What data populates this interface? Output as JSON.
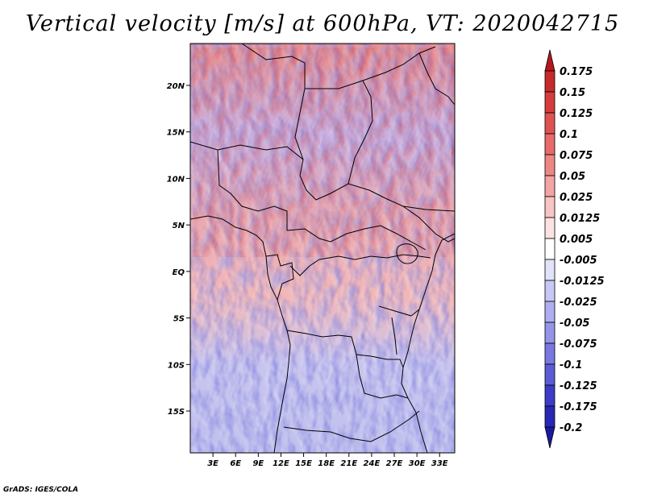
{
  "title": "Vertical velocity [m/s] at 600hPa, VT: 2020042715",
  "credit": "GrADS: IGES/COLA",
  "map": {
    "lat_range": [
      -19.5,
      24.5
    ],
    "lon_range": [
      0,
      35
    ],
    "lat_labels": [
      {
        "value": 20,
        "label": "20N"
      },
      {
        "value": 15,
        "label": "15N"
      },
      {
        "value": 10,
        "label": "10N"
      },
      {
        "value": 5,
        "label": "5N"
      },
      {
        "value": 0,
        "label": "EQ"
      },
      {
        "value": -5,
        "label": "5S"
      },
      {
        "value": -10,
        "label": "10S"
      },
      {
        "value": -15,
        "label": "15S"
      }
    ],
    "lon_labels": [
      {
        "value": 3,
        "label": "3E"
      },
      {
        "value": 6,
        "label": "6E"
      },
      {
        "value": 9,
        "label": "9E"
      },
      {
        "value": 12,
        "label": "12E"
      },
      {
        "value": 15,
        "label": "15E"
      },
      {
        "value": 18,
        "label": "18E"
      },
      {
        "value": 21,
        "label": "21E"
      },
      {
        "value": 24,
        "label": "24E"
      },
      {
        "value": 27,
        "label": "27E"
      },
      {
        "value": 30,
        "label": "30E"
      },
      {
        "value": 33,
        "label": "33E"
      }
    ]
  },
  "colorbar": {
    "levels": [
      "0.175",
      "0.15",
      "0.125",
      "0.1",
      "0.075",
      "0.05",
      "0.025",
      "0.0125",
      "0.005",
      "-0.005",
      "-0.0125",
      "-0.025",
      "-0.05",
      "-0.075",
      "-0.1",
      "-0.125",
      "-0.175",
      "-0.2"
    ],
    "colors": [
      "#b8161e",
      "#c72a2a",
      "#d63c3c",
      "#e05252",
      "#e86a6a",
      "#ee8686",
      "#f4a4a4",
      "#f8c4c4",
      "#fce2e2",
      "#ffffff",
      "#e2e2fa",
      "#c8c8f6",
      "#aeaef0",
      "#9494ea",
      "#7878e0",
      "#5c5cd6",
      "#3c3cc6",
      "#2828b4",
      "#1a1aa0"
    ]
  }
}
